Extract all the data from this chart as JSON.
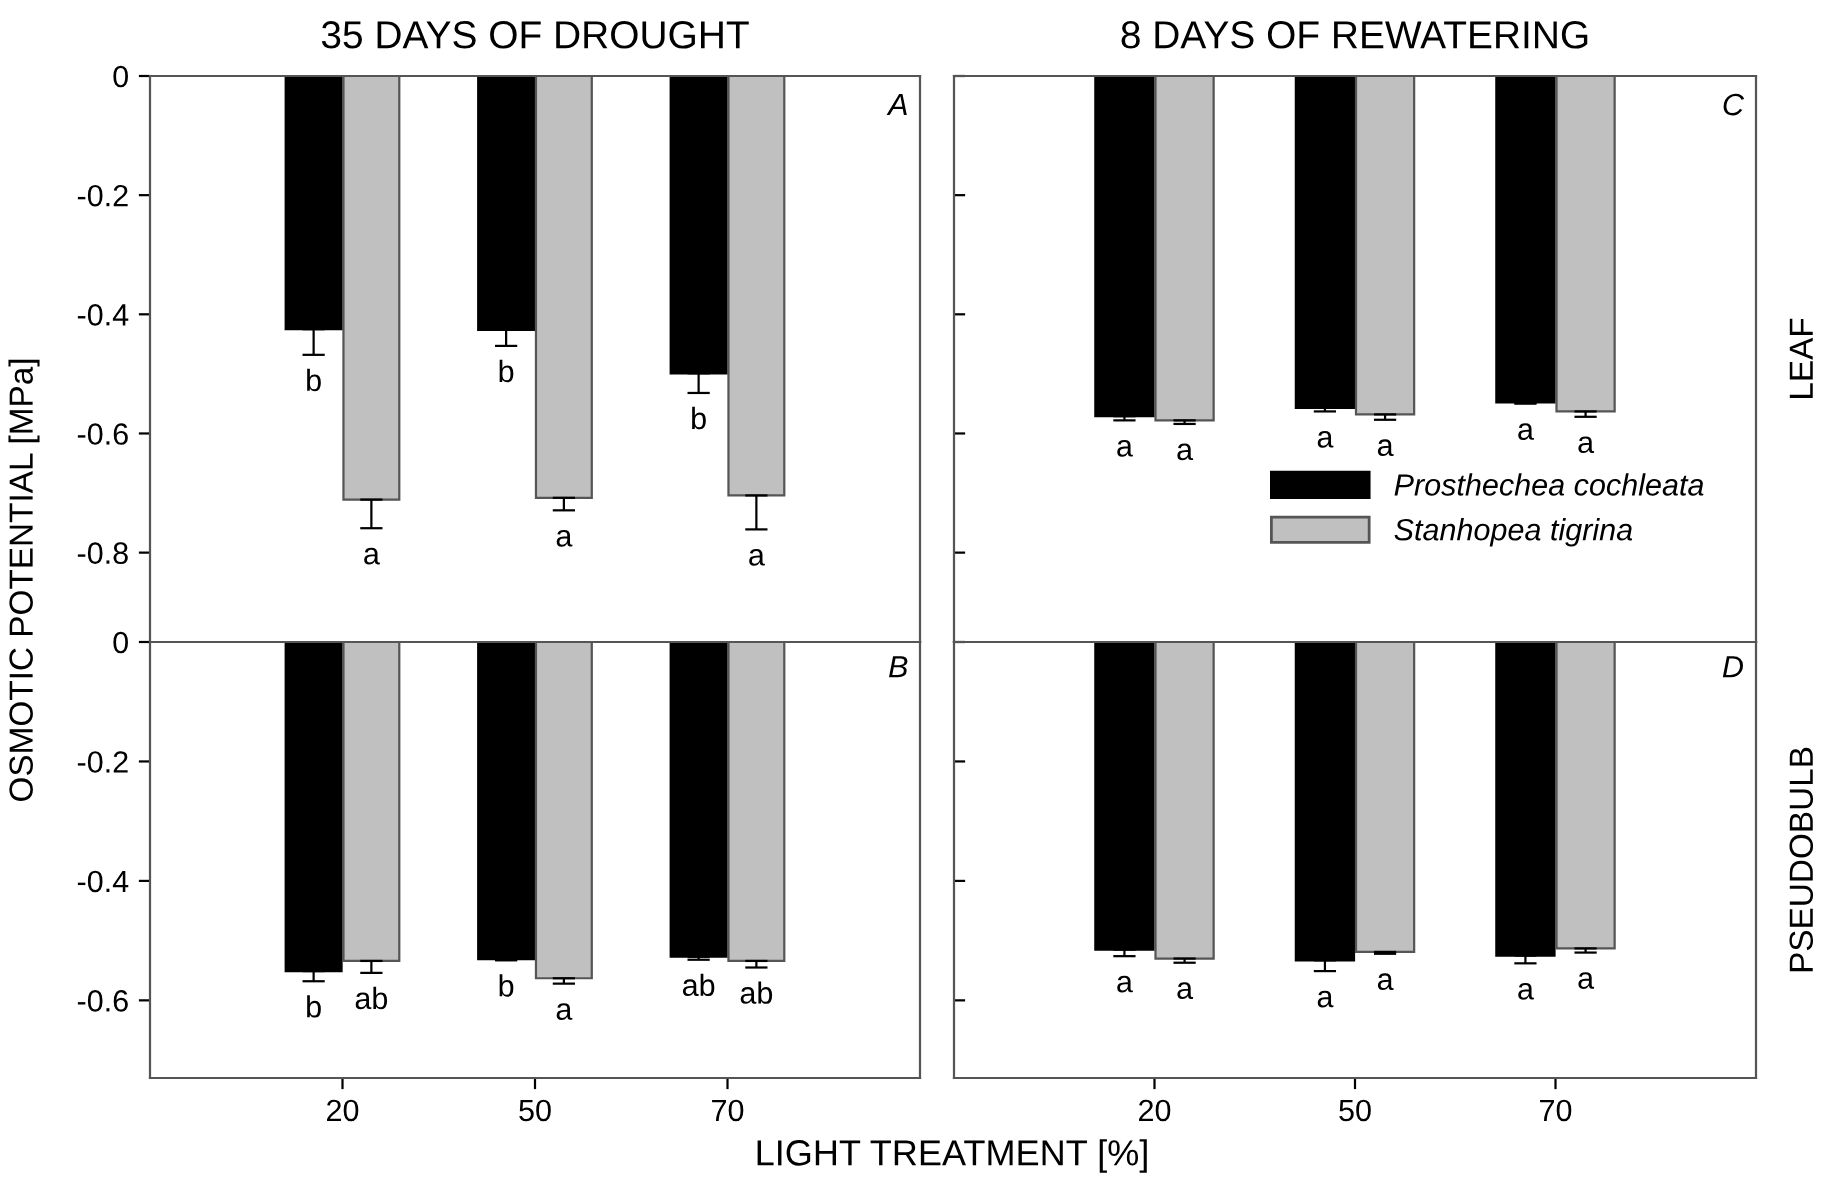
{
  "chart_data": [
    {
      "type": "bar",
      "title": "35 DAYS OF DROUGHT",
      "ylabel": "OSMOTIC POTENTIAL [MPa]",
      "categories": [
        "20",
        "50",
        "70"
      ],
      "ylim": [
        -0.95,
        0
      ],
      "yticks": [
        0,
        -0.2,
        -0.4,
        -0.6,
        -0.8
      ],
      "tick_labels": "y",
      "annotations": [
        "A"
      ],
      "series": [
        {
          "color": "#000000",
          "values": [
            -0.425,
            -0.426,
            -0.499
          ],
          "errors": [
            [
              -0.468,
              -0.425
            ],
            [
              -0.453,
              -0.426
            ],
            [
              -0.532,
              -0.499
            ]
          ],
          "value_labels": [
            "b",
            "b",
            "b"
          ]
        },
        {
          "color": "#c0c0c0",
          "values": [
            -0.711,
            -0.708,
            -0.704
          ],
          "errors": [
            [
              -0.759,
              -0.711
            ],
            [
              -0.729,
              -0.708
            ],
            [
              -0.761,
              -0.704
            ]
          ],
          "value_labels": [
            "a",
            "a",
            "a"
          ]
        }
      ]
    },
    {
      "type": "bar",
      "title": "8 DAYS OF REWATERING",
      "y2label": "LEAF",
      "categories": [
        "20",
        "50",
        "70"
      ],
      "ylim": [
        -0.95,
        0
      ],
      "yticks": [
        0,
        -0.2,
        -0.4,
        -0.6,
        -0.8
      ],
      "tick_labels": false,
      "annotations": [
        "C"
      ],
      "legend": "bottom right",
      "series": [
        {
          "name": "Prosthechea cochleata",
          "color": "#000000",
          "values": [
            -0.571,
            -0.557,
            -0.548
          ],
          "errors": [
            [
              -0.578,
              -0.571
            ],
            [
              -0.563,
              -0.557
            ],
            [
              -0.55,
              -0.548
            ]
          ],
          "value_labels": [
            "a",
            "a",
            "a"
          ]
        },
        {
          "name": "Stanhopea tigrina",
          "color": "#c0c0c0",
          "values": [
            -0.578,
            -0.568,
            -0.563
          ],
          "errors": [
            [
              -0.584,
              -0.578
            ],
            [
              -0.577,
              -0.568
            ],
            [
              -0.572,
              -0.563
            ]
          ],
          "value_labels": [
            "a",
            "a",
            "a"
          ]
        }
      ]
    },
    {
      "type": "bar",
      "xlabel": "LIGHT TREATMENT [%]",
      "categories": [
        "20",
        "50",
        "70"
      ],
      "ylim": [
        -0.73,
        0
      ],
      "yticks": [
        0,
        -0.2,
        -0.4,
        -0.6
      ],
      "annotations": [
        "B"
      ],
      "series": [
        {
          "color": "#000000",
          "values": [
            -0.551,
            -0.531,
            -0.527
          ],
          "errors": [
            [
              -0.568,
              -0.551
            ],
            [
              -0.533,
              -0.531
            ],
            [
              -0.532,
              -0.527
            ]
          ],
          "value_labels": [
            "b",
            "b",
            "ab"
          ]
        },
        {
          "color": "#c0c0c0",
          "values": [
            -0.534,
            -0.563,
            -0.534
          ],
          "errors": [
            [
              -0.554,
              -0.534
            ],
            [
              -0.572,
              -0.563
            ],
            [
              -0.545,
              -0.534
            ]
          ],
          "value_labels": [
            "ab",
            "a",
            "ab"
          ]
        }
      ]
    },
    {
      "type": "bar",
      "y2label": "PSEUDOBULB",
      "categories": [
        "20",
        "50",
        "70"
      ],
      "ylim": [
        -0.73,
        0
      ],
      "yticks": [
        0,
        -0.2,
        -0.4,
        -0.6
      ],
      "tick_labels": "x",
      "annotations": [
        "D"
      ],
      "series": [
        {
          "color": "#000000",
          "values": [
            -0.515,
            -0.533,
            -0.525
          ],
          "errors": [
            [
              -0.526,
              -0.515
            ],
            [
              -0.551,
              -0.533
            ],
            [
              -0.538,
              -0.525
            ]
          ],
          "value_labels": [
            "a",
            "a",
            "a"
          ]
        },
        {
          "color": "#c0c0c0",
          "values": [
            -0.53,
            -0.519,
            -0.513
          ],
          "errors": [
            [
              -0.537,
              -0.53
            ],
            [
              -0.522,
              -0.519
            ],
            [
              -0.52,
              -0.513
            ]
          ],
          "value_labels": [
            "a",
            "a",
            "a"
          ]
        }
      ]
    }
  ]
}
